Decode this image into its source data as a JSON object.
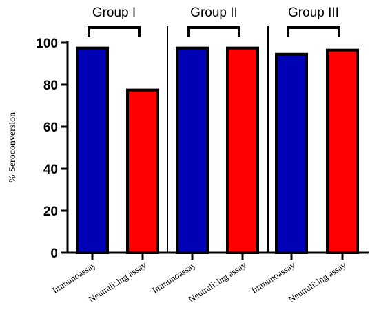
{
  "chart_data": {
    "type": "bar",
    "ylabel": "% Seroconversion",
    "ylim": [
      0,
      100
    ],
    "yticks": [
      0,
      20,
      40,
      60,
      80,
      100
    ],
    "groups": [
      {
        "label": "Group I",
        "bars": [
          {
            "category": "Immunoassay",
            "value": 97.5,
            "color": "#0000b4"
          },
          {
            "category": "Neutralizing assay",
            "value": 77.5,
            "color": "#ff0000"
          }
        ]
      },
      {
        "label": "Group II",
        "bars": [
          {
            "category": "Immunoassay",
            "value": 97.5,
            "color": "#0000b4"
          },
          {
            "category": "Neutralizing assay",
            "value": 97.5,
            "color": "#ff0000"
          }
        ]
      },
      {
        "label": "Group III",
        "bars": [
          {
            "category": "Immunoassay",
            "value": 94.5,
            "color": "#0000b4"
          },
          {
            "category": "Neutralizing assay",
            "value": 96.5,
            "color": "#ff0000"
          }
        ]
      }
    ]
  }
}
